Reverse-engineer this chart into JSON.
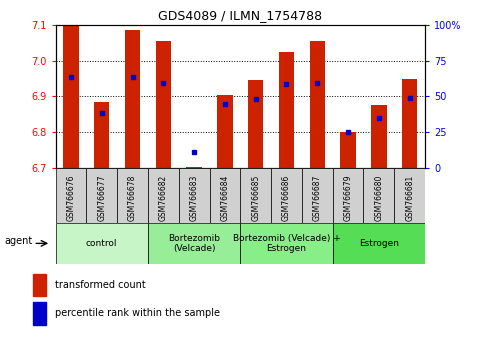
{
  "title": "GDS4089 / ILMN_1754788",
  "samples": [
    "GSM766676",
    "GSM766677",
    "GSM766678",
    "GSM766682",
    "GSM766683",
    "GSM766684",
    "GSM766685",
    "GSM766686",
    "GSM766687",
    "GSM766679",
    "GSM766680",
    "GSM766681"
  ],
  "red_values": [
    7.1,
    6.885,
    7.085,
    7.055,
    6.702,
    6.905,
    6.945,
    7.025,
    7.055,
    6.802,
    6.875,
    6.948
  ],
  "blue_values": [
    6.953,
    6.855,
    6.953,
    6.938,
    6.745,
    6.878,
    6.893,
    6.935,
    6.938,
    6.8,
    6.84,
    6.895
  ],
  "y_min": 6.7,
  "y_max": 7.1,
  "y_ticks_left": [
    6.7,
    6.8,
    6.9,
    7.0,
    7.1
  ],
  "y_ticks_right": [
    0,
    25,
    50,
    75,
    100
  ],
  "groups": [
    {
      "label": "control",
      "start": 0,
      "end": 3,
      "color": "#c8f5c8"
    },
    {
      "label": "Bortezomib\n(Velcade)",
      "start": 3,
      "end": 6,
      "color": "#98ee98"
    },
    {
      "label": "Bortezomib (Velcade) +\nEstrogen",
      "start": 6,
      "end": 9,
      "color": "#88ee88"
    },
    {
      "label": "Estrogen",
      "start": 9,
      "end": 12,
      "color": "#55dd55"
    }
  ],
  "agent_label": "agent",
  "legend_red": "transformed count",
  "legend_blue": "percentile rank within the sample",
  "bar_color": "#cc2200",
  "dot_color": "#0000cc",
  "bar_width": 0.5,
  "sample_cell_color": "#d0d0d0",
  "background_color": "#ffffff"
}
